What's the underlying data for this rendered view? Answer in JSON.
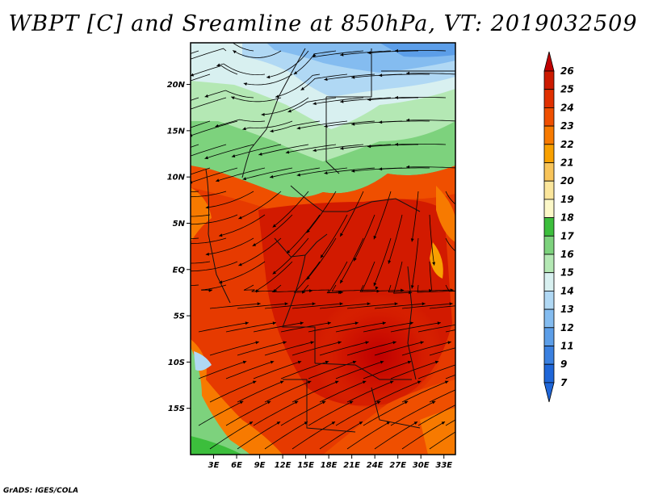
{
  "title": "WBPT [C] and Sreamline at 850hPa, VT: 2019032509",
  "footer": "GrADS: IGES/COLA",
  "map": {
    "lon_range": [
      0,
      34.5
    ],
    "lat_range": [
      -20,
      24.5
    ],
    "lon_ticks": [
      "3E",
      "6E",
      "9E",
      "12E",
      "15E",
      "18E",
      "21E",
      "24E",
      "27E",
      "30E",
      "33E"
    ],
    "lat_ticks": [
      "20N",
      "15N",
      "10N",
      "5N",
      "EQ",
      "5S",
      "10S",
      "15S"
    ]
  },
  "colorbar": {
    "levels": [
      "26",
      "25",
      "24",
      "23",
      "22",
      "21",
      "20",
      "19",
      "18",
      "17",
      "16",
      "15",
      "14",
      "13",
      "12",
      "11",
      "9",
      "7"
    ],
    "colors": [
      "#c00000",
      "#cc1a00",
      "#e03000",
      "#ef4f00",
      "#f77a00",
      "#f8a000",
      "#f8c45a",
      "#fbe69c",
      "#fcf8c8",
      "#3cbe3c",
      "#7dd27d",
      "#b4e8b4",
      "#d8f0f0",
      "#b0d8f4",
      "#84bcf0",
      "#5c9ee8",
      "#3a80e0",
      "#1f66d8"
    ]
  }
}
